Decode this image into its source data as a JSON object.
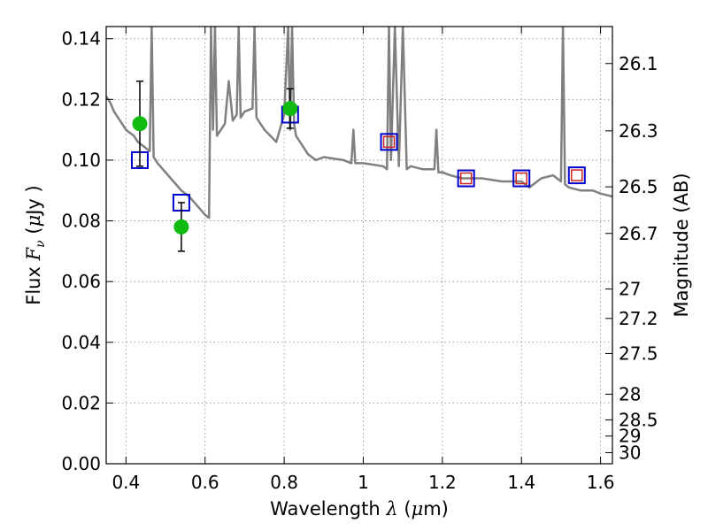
{
  "chart_data": {
    "type": "scatter",
    "xlabel": "Wavelength",
    "xlabel_symbol": "λ",
    "xlabel_unit_open": " (",
    "xlabel_unit_mu": "μ",
    "xlabel_unit_rest": "m)",
    "ylabel": "Flux",
    "ylabel_symbol": "F",
    "ylabel_sub": "ν",
    "ylabel_unit_open": "(",
    "ylabel_unit_mu": "μ",
    "ylabel_unit_rest": "Jy )",
    "y2label": "Magnitude (AB)",
    "xlim": [
      0.35,
      1.63
    ],
    "ylim": [
      0.0,
      0.144
    ],
    "grid": true,
    "x_ticks": [
      0.4,
      0.6,
      0.8,
      1.0,
      1.2,
      1.4,
      1.6
    ],
    "x_tick_labels": [
      "0.4",
      "0.6",
      "0.8",
      "1",
      "1.2",
      "1.4",
      "1.6"
    ],
    "y_ticks": [
      0.0,
      0.02,
      0.04,
      0.06,
      0.08,
      0.1,
      0.12,
      0.14
    ],
    "y_tick_labels": [
      "0.00",
      "0.02",
      "0.04",
      "0.06",
      "0.08",
      "0.10",
      "0.12",
      "0.14"
    ],
    "y2_ticks": [
      26.1,
      26.3,
      26.5,
      26.7,
      27,
      27.2,
      27.5,
      28,
      28.5,
      29,
      30
    ],
    "y2_tick_labels": [
      "26.1",
      "26.3",
      "26.5",
      "26.7",
      "27",
      "27.2",
      "27.5",
      "28",
      "28.5",
      "29",
      "30"
    ],
    "colors": {
      "model": "#808080",
      "observed": "#11bb11",
      "model_phot": "#0000cc",
      "predicted": "#cc2222",
      "grid": "#888888"
    },
    "model_spectrum": {
      "x": [
        0.35,
        0.36,
        0.37,
        0.38,
        0.39,
        0.4,
        0.41,
        0.42,
        0.43,
        0.44,
        0.45,
        0.46,
        0.465,
        0.47,
        0.48,
        0.5,
        0.52,
        0.54,
        0.56,
        0.58,
        0.6,
        0.61,
        0.615,
        0.62,
        0.625,
        0.63,
        0.65,
        0.66,
        0.67,
        0.68,
        0.685,
        0.69,
        0.7,
        0.72,
        0.725,
        0.73,
        0.75,
        0.78,
        0.8,
        0.81,
        0.815,
        0.82,
        0.825,
        0.83,
        0.86,
        0.88,
        0.9,
        0.95,
        0.97,
        0.975,
        0.98,
        1.0,
        1.05,
        1.06,
        1.065,
        1.07,
        1.08,
        1.09,
        1.1,
        1.11,
        1.12,
        1.15,
        1.18,
        1.185,
        1.19,
        1.2,
        1.22,
        1.25,
        1.3,
        1.35,
        1.4,
        1.42,
        1.45,
        1.48,
        1.5,
        1.505,
        1.51,
        1.52,
        1.55,
        1.58,
        1.6,
        1.63
      ],
      "y": [
        0.121,
        0.119,
        0.116,
        0.114,
        0.112,
        0.11,
        0.109,
        0.108,
        0.106,
        0.105,
        0.104,
        0.103,
        0.144,
        0.101,
        0.099,
        0.096,
        0.093,
        0.09,
        0.088,
        0.085,
        0.082,
        0.081,
        0.144,
        0.11,
        0.144,
        0.108,
        0.112,
        0.126,
        0.113,
        0.115,
        0.144,
        0.114,
        0.116,
        0.117,
        0.144,
        0.114,
        0.11,
        0.106,
        0.115,
        0.144,
        0.11,
        0.144,
        0.112,
        0.108,
        0.102,
        0.1,
        0.101,
        0.1,
        0.099,
        0.11,
        0.099,
        0.099,
        0.098,
        0.097,
        0.144,
        0.1,
        0.144,
        0.098,
        0.144,
        0.097,
        0.098,
        0.097,
        0.097,
        0.11,
        0.096,
        0.096,
        0.095,
        0.094,
        0.094,
        0.093,
        0.093,
        0.091,
        0.094,
        0.095,
        0.093,
        0.144,
        0.092,
        0.091,
        0.09,
        0.09,
        0.089,
        0.088
      ]
    },
    "series": [
      {
        "kind": "observed",
        "x": [
          0.435,
          0.54,
          0.815
        ],
        "y": [
          0.112,
          0.078,
          0.117
        ],
        "yerr": [
          0.014,
          0.008,
          0.0065
        ]
      },
      {
        "kind": "model_phot",
        "x": [
          0.435,
          0.54,
          0.815,
          1.065,
          1.26,
          1.4,
          1.54
        ],
        "y": [
          0.1,
          0.086,
          0.115,
          0.106,
          0.094,
          0.094,
          0.095
        ]
      },
      {
        "kind": "predicted",
        "x": [
          1.065,
          1.26,
          1.4,
          1.54
        ],
        "y": [
          0.106,
          0.094,
          0.094,
          0.095
        ]
      }
    ]
  }
}
